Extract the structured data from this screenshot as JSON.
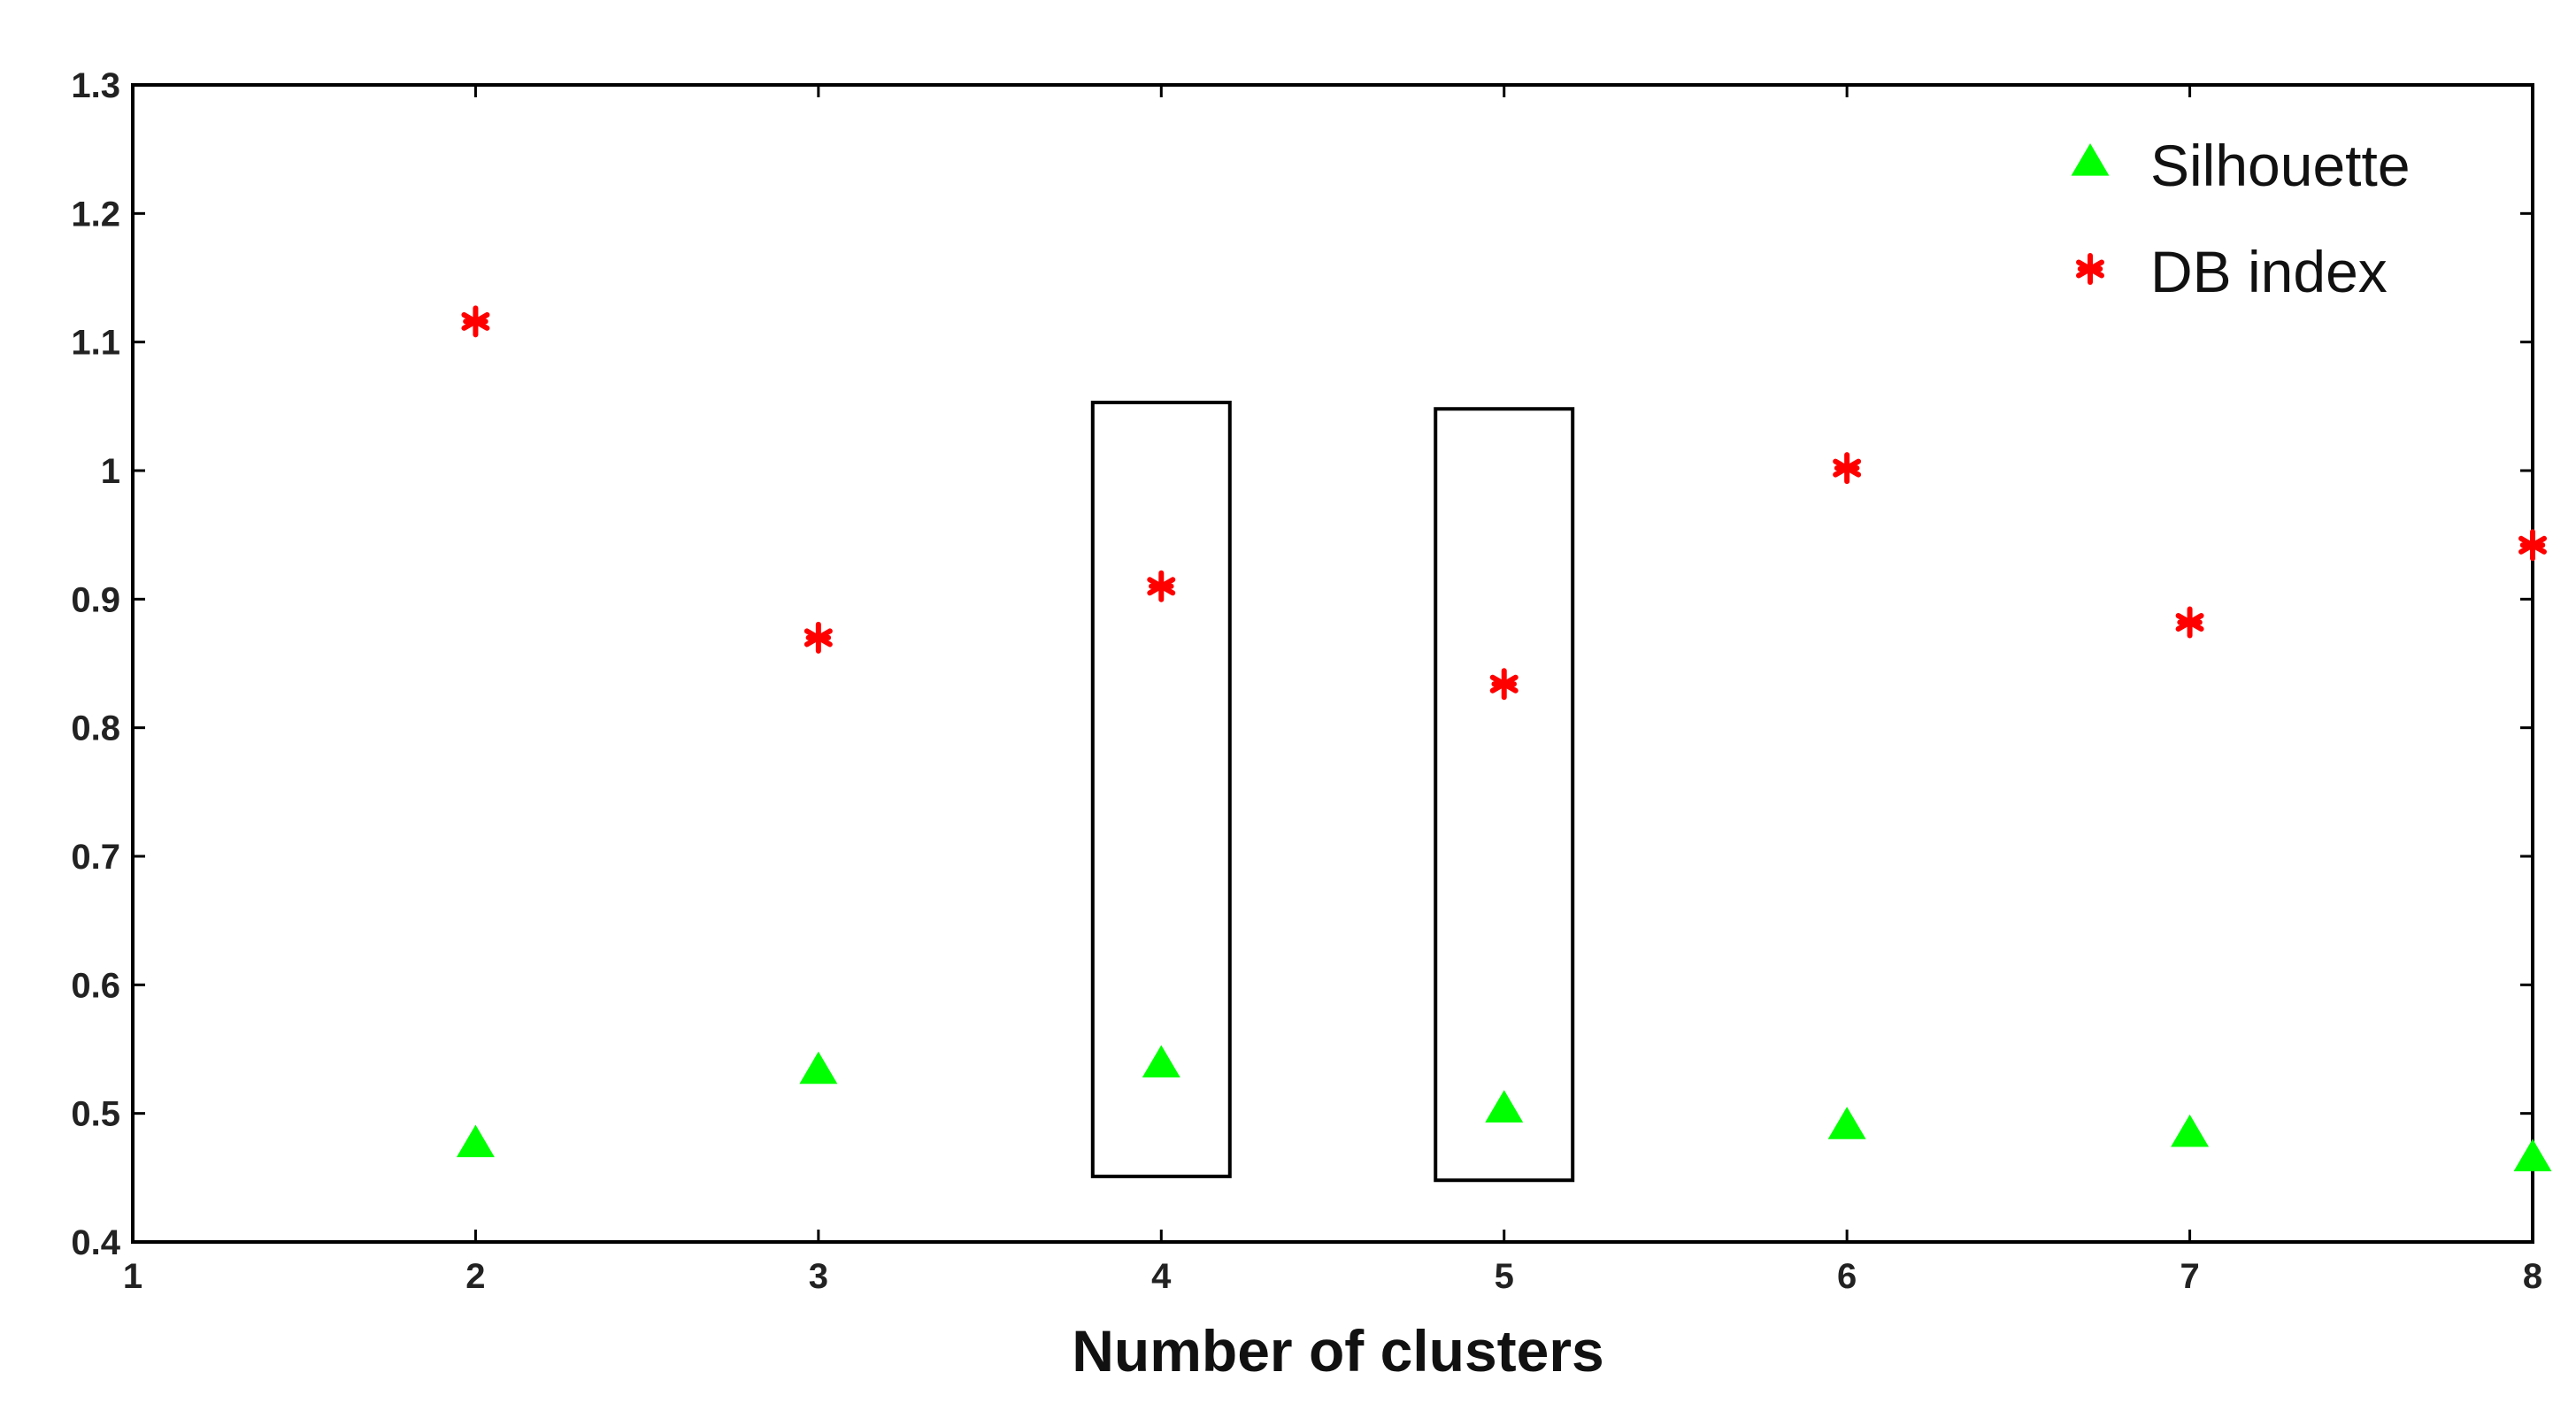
{
  "chart_data": {
    "type": "scatter",
    "title": "",
    "xlabel": "Number of clusters",
    "ylabel": "",
    "xlim": [
      1,
      8
    ],
    "ylim": [
      0.4,
      1.3
    ],
    "xticks": [
      1,
      2,
      3,
      4,
      5,
      6,
      7,
      8
    ],
    "yticks": [
      0.4,
      0.5,
      0.6,
      0.7,
      0.8,
      0.9,
      1,
      1.1,
      1.2,
      1.3
    ],
    "grid": false,
    "legend_position": "top-right",
    "series": [
      {
        "name": "Silhouette",
        "marker": "triangle",
        "color": "#00ff00",
        "x": [
          2,
          3,
          4,
          5,
          6,
          7,
          8
        ],
        "y": [
          0.476,
          0.533,
          0.538,
          0.503,
          0.49,
          0.484,
          0.465
        ]
      },
      {
        "name": "DB index",
        "marker": "asterisk",
        "color": "#ff0000",
        "x": [
          2,
          3,
          4,
          5,
          6,
          7,
          8
        ],
        "y": [
          1.116,
          0.87,
          0.91,
          0.834,
          1.002,
          0.882,
          0.942
        ]
      }
    ],
    "annotations": [
      {
        "type": "box",
        "x_range": [
          3.8,
          4.2
        ],
        "y_range": [
          0.451,
          1.053
        ]
      },
      {
        "type": "box",
        "x_range": [
          4.8,
          5.2
        ],
        "y_range": [
          0.448,
          1.048
        ]
      }
    ]
  }
}
